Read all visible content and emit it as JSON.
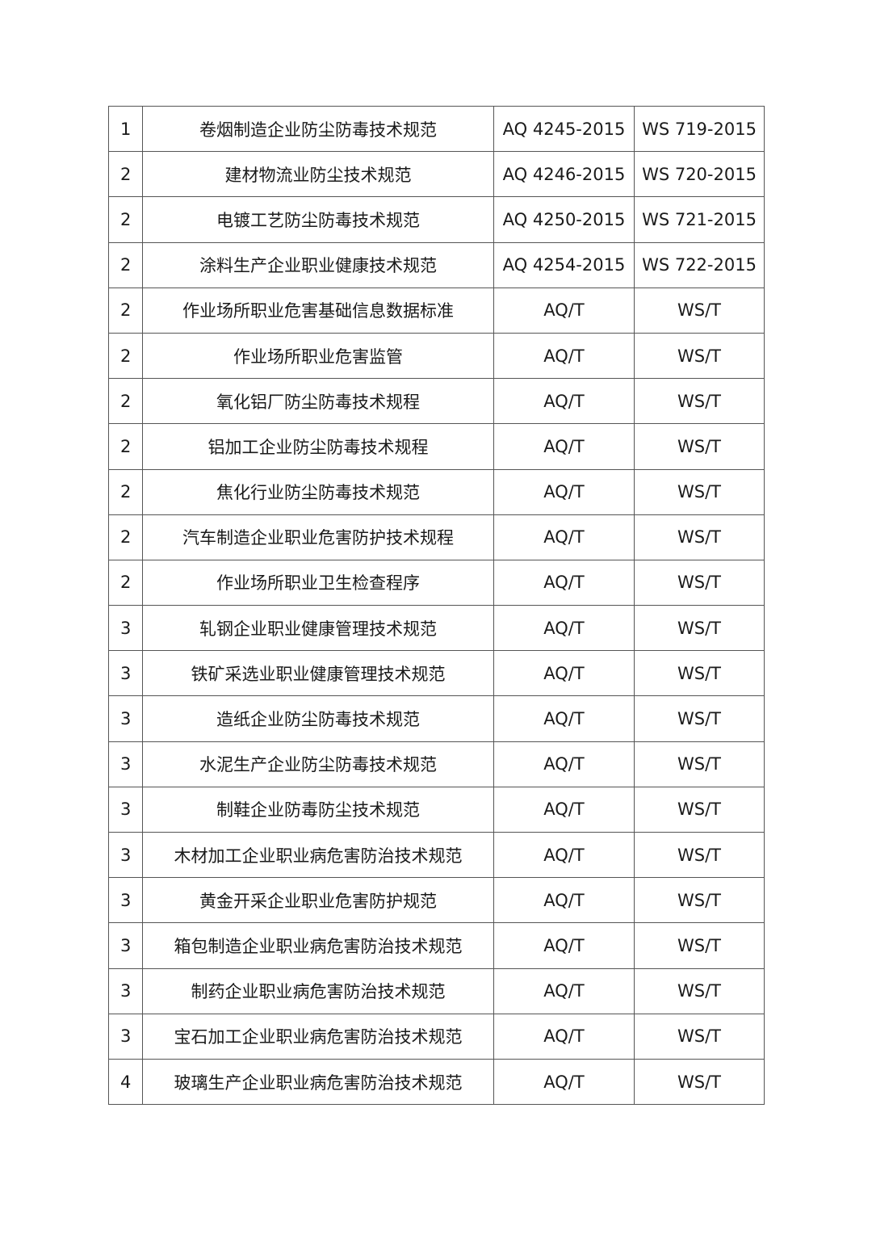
{
  "table": {
    "rows": [
      {
        "level": "1",
        "name": "卷烟制造企业防尘防毒技术规范",
        "aq": "AQ 4245-2015",
        "ws": "WS 719-2015"
      },
      {
        "level": "2",
        "name": "建材物流业防尘技术规范",
        "aq": "AQ 4246-2015",
        "ws": "WS 720-2015"
      },
      {
        "level": "2",
        "name": "电镀工艺防尘防毒技术规范",
        "aq": "AQ 4250-2015",
        "ws": "WS 721-2015"
      },
      {
        "level": "2",
        "name": "涂料生产企业职业健康技术规范",
        "aq": "AQ 4254-2015",
        "ws": "WS 722-2015"
      },
      {
        "level": "2",
        "name": "作业场所职业危害基础信息数据标准",
        "aq": "AQ/T",
        "ws": "WS/T"
      },
      {
        "level": "2",
        "name": "作业场所职业危害监管",
        "aq": "AQ/T",
        "ws": "WS/T"
      },
      {
        "level": "2",
        "name": "氧化铝厂防尘防毒技术规程",
        "aq": "AQ/T",
        "ws": "WS/T"
      },
      {
        "level": "2",
        "name": "铝加工企业防尘防毒技术规程",
        "aq": "AQ/T",
        "ws": "WS/T"
      },
      {
        "level": "2",
        "name": "焦化行业防尘防毒技术规范",
        "aq": "AQ/T",
        "ws": "WS/T"
      },
      {
        "level": "2",
        "name": "汽车制造企业职业危害防护技术规程",
        "aq": "AQ/T",
        "ws": "WS/T"
      },
      {
        "level": "2",
        "name": "作业场所职业卫生检查程序",
        "aq": "AQ/T",
        "ws": "WS/T"
      },
      {
        "level": "3",
        "name": "轧钢企业职业健康管理技术规范",
        "aq": "AQ/T",
        "ws": "WS/T"
      },
      {
        "level": "3",
        "name": "铁矿采选业职业健康管理技术规范",
        "aq": "AQ/T",
        "ws": "WS/T"
      },
      {
        "level": "3",
        "name": "造纸企业防尘防毒技术规范",
        "aq": "AQ/T",
        "ws": "WS/T"
      },
      {
        "level": "3",
        "name": "水泥生产企业防尘防毒技术规范",
        "aq": "AQ/T",
        "ws": "WS/T"
      },
      {
        "level": "3",
        "name": "制鞋企业防毒防尘技术规范",
        "aq": "AQ/T",
        "ws": "WS/T"
      },
      {
        "level": "3",
        "name": "木材加工企业职业病危害防治技术规范",
        "aq": "AQ/T",
        "ws": "WS/T"
      },
      {
        "level": "3",
        "name": "黄金开采企业职业危害防护规范",
        "aq": "AQ/T",
        "ws": "WS/T"
      },
      {
        "level": "3",
        "name": "箱包制造企业职业病危害防治技术规范",
        "aq": "AQ/T",
        "ws": "WS/T"
      },
      {
        "level": "3",
        "name": "制药企业职业病危害防治技术规范",
        "aq": "AQ/T",
        "ws": "WS/T"
      },
      {
        "level": "3",
        "name": "宝石加工企业职业病危害防治技术规范",
        "aq": "AQ/T",
        "ws": "WS/T"
      },
      {
        "level": "4",
        "name": "玻璃生产企业职业病危害防治技术规范",
        "aq": "AQ/T",
        "ws": "WS/T"
      }
    ]
  }
}
